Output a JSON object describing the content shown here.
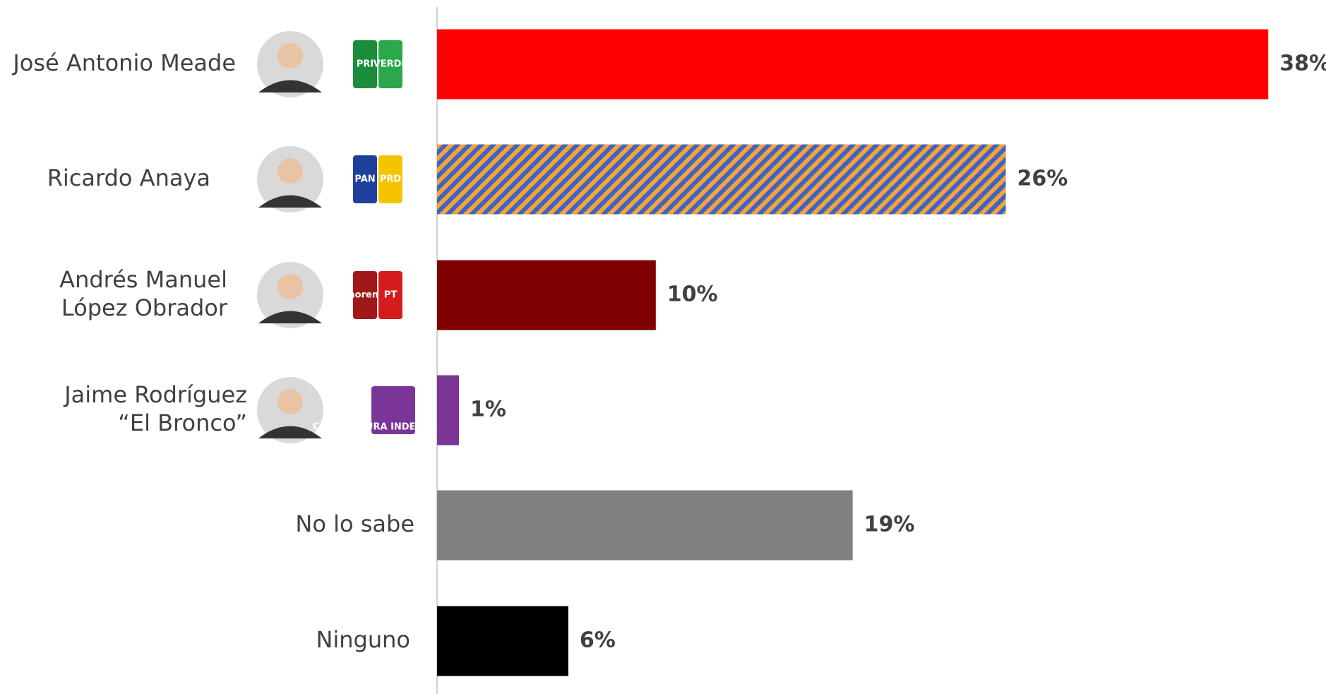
{
  "chart_data": {
    "type": "bar",
    "orientation": "horizontal",
    "categories": [
      "José Antonio Meade",
      "Ricardo Anaya",
      "Andrés Manuel\nLópez Obrador",
      "Jaime Rodríguez\n“El Bronco”",
      "No lo sabe",
      "Ninguno"
    ],
    "values": [
      38,
      26,
      10,
      1,
      19,
      6
    ],
    "value_labels": [
      "38%",
      "26%",
      "10%",
      "1%",
      "19%",
      "6%"
    ],
    "colors": [
      "#ff0000",
      [
        "#3e63c4",
        "#f2a33a"
      ],
      "#7f0000",
      "#7b3596",
      "#808080",
      "#000000"
    ],
    "logos": [
      [
        "PRI",
        "VERDE"
      ],
      [
        "PAN",
        "PRD"
      ],
      [
        "morena",
        "PT"
      ],
      [
        "CANDIDATURA INDEPENDIENTE"
      ],
      [],
      []
    ]
  }
}
